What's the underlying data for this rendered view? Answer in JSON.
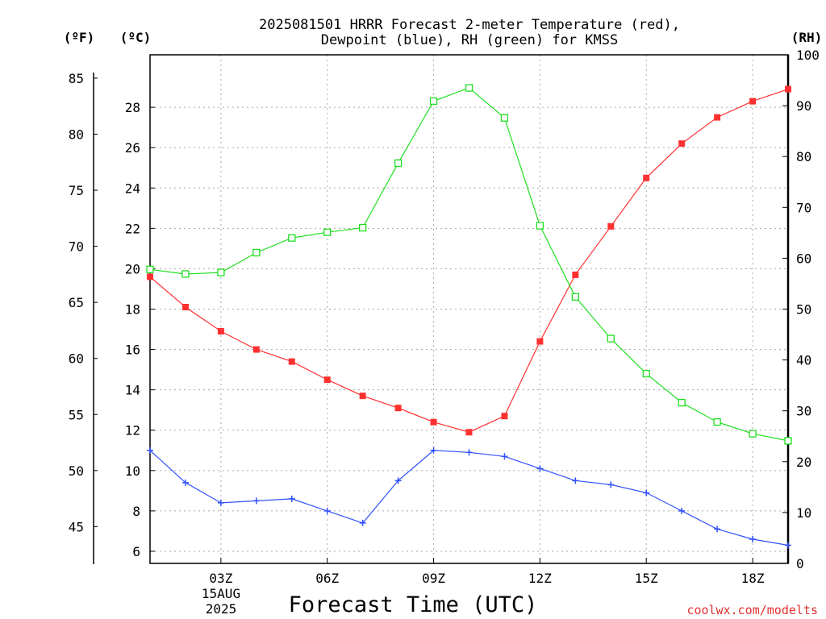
{
  "chart_data": {
    "type": "line",
    "title_line1": "2025081501 HRRR Forecast 2-meter Temperature (red),",
    "title_line2": "Dewpoint (blue), RH (green) for KMSS",
    "xlabel": "Forecast Time (UTC)",
    "watermark": "coolwx.com/modelts",
    "date_label_1": "15AUG",
    "date_label_2": "2025",
    "unit_f": "(ºF)",
    "unit_c": "(ºC)",
    "unit_rh": "(RH)",
    "x": [
      1,
      2,
      3,
      4,
      5,
      6,
      7,
      8,
      9,
      10,
      11,
      12,
      13,
      14,
      15,
      16,
      17,
      18,
      19
    ],
    "xlim": [
      1,
      19
    ],
    "x_ticks": [
      {
        "x": 3,
        "label": "03Z"
      },
      {
        "x": 6,
        "label": "06Z"
      },
      {
        "x": 9,
        "label": "09Z"
      },
      {
        "x": 12,
        "label": "12Z"
      },
      {
        "x": 15,
        "label": "15Z"
      },
      {
        "x": 18,
        "label": "18Z"
      }
    ],
    "celsius_axis": {
      "ylim": [
        5.4,
        30.6
      ],
      "ticks": [
        6,
        8,
        10,
        12,
        14,
        16,
        18,
        20,
        22,
        24,
        26,
        28
      ]
    },
    "fahrenheit_axis": {
      "ticks": [
        45,
        50,
        55,
        60,
        65,
        70,
        75,
        80,
        85
      ]
    },
    "rh_axis": {
      "ylim": [
        0,
        100
      ],
      "ticks": [
        0,
        10,
        20,
        30,
        40,
        50,
        60,
        70,
        80,
        90,
        100
      ]
    },
    "grid": true,
    "series": [
      {
        "color": "#ff3030",
        "marker": "filled-square",
        "axis": "celsius",
        "values": [
          19.6,
          18.1,
          16.9,
          16.0,
          15.4,
          14.5,
          13.7,
          13.1,
          12.4,
          11.9,
          12.7,
          16.4,
          19.7,
          22.1,
          24.5,
          26.2,
          27.5,
          28.3,
          28.9
        ]
      },
      {
        "color": "#3050ff",
        "marker": "plus",
        "axis": "celsius",
        "values": [
          11.0,
          9.4,
          8.4,
          8.5,
          8.6,
          8.0,
          7.4,
          9.5,
          11.0,
          10.9,
          10.7,
          10.1,
          9.5,
          9.3,
          8.9,
          8.0,
          7.1,
          6.6,
          6.3
        ]
      },
      {
        "color": "#20e020",
        "marker": "open-square",
        "axis": "rh",
        "values": [
          57.8,
          56.9,
          57.2,
          61.1,
          64.0,
          65.1,
          66.0,
          78.7,
          90.9,
          93.5,
          87.6,
          66.4,
          52.4,
          44.2,
          37.3,
          31.6,
          27.8,
          25.5,
          24.1
        ]
      }
    ]
  }
}
